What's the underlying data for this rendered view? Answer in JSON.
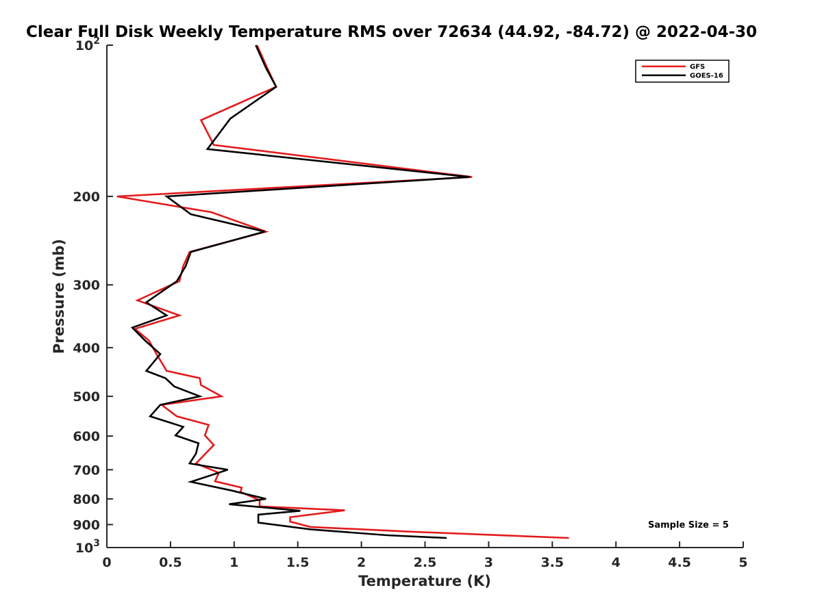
{
  "chart_data": {
    "type": "line",
    "title": "Clear Full Disk Weekly Temperature RMS over 72634 (44.92, -84.72) @ 2022-04-30",
    "xlabel": "Temperature (K)",
    "ylabel": "Pressure (mb)",
    "xlim": [
      0,
      5
    ],
    "ylim": [
      100,
      1000
    ],
    "y_scale": "log",
    "y_reversed": true,
    "grid": false,
    "legend_position": "top-right",
    "x_ticks": [
      0,
      0.5,
      1,
      1.5,
      2,
      2.5,
      3,
      3.5,
      4,
      4.5,
      5
    ],
    "x_tick_labels": [
      "0",
      "0.5",
      "1",
      "1.5",
      "2",
      "2.5",
      "3",
      "3.5",
      "4",
      "4.5",
      "5"
    ],
    "y_ticks": [
      100,
      200,
      300,
      400,
      500,
      600,
      700,
      800,
      900,
      1000
    ],
    "y_tick_labels": [
      "10^2",
      "200",
      "300",
      "400",
      "500",
      "600",
      "700",
      "800",
      "900",
      "10^3"
    ],
    "annotation": "Sample Size = 5",
    "series": [
      {
        "name": "GFS",
        "color": "#e41a1c",
        "points": [
          [
            1.18,
            100
          ],
          [
            1.26,
            111
          ],
          [
            1.33,
            121
          ],
          [
            0.74,
            141
          ],
          [
            0.84,
            158
          ],
          [
            2.87,
            183
          ],
          [
            0.08,
            200
          ],
          [
            0.82,
            215
          ],
          [
            1.25,
            235
          ],
          [
            0.65,
            258
          ],
          [
            0.6,
            275
          ],
          [
            0.57,
            295
          ],
          [
            0.24,
            322
          ],
          [
            0.57,
            345
          ],
          [
            0.22,
            367
          ],
          [
            0.33,
            387
          ],
          [
            0.39,
            412
          ],
          [
            0.47,
            445
          ],
          [
            0.73,
            460
          ],
          [
            0.74,
            475
          ],
          [
            0.9,
            500
          ],
          [
            0.43,
            520
          ],
          [
            0.55,
            548
          ],
          [
            0.8,
            570
          ],
          [
            0.77,
            598
          ],
          [
            0.84,
            625
          ],
          [
            0.77,
            652
          ],
          [
            0.7,
            680
          ],
          [
            0.88,
            710
          ],
          [
            0.85,
            738
          ],
          [
            1.06,
            760
          ],
          [
            1.05,
            775
          ],
          [
            1.2,
            805
          ],
          [
            1.2,
            828
          ],
          [
            1.87,
            843
          ],
          [
            1.44,
            870
          ],
          [
            1.44,
            888
          ],
          [
            1.6,
            910
          ],
          [
            2.4,
            930
          ],
          [
            3.63,
            957
          ]
        ]
      },
      {
        "name": "GOES-16",
        "color": "#000000",
        "points": [
          [
            1.17,
            100
          ],
          [
            1.25,
            111
          ],
          [
            1.33,
            121
          ],
          [
            0.97,
            140
          ],
          [
            0.79,
            161
          ],
          [
            2.85,
            183
          ],
          [
            0.47,
            200
          ],
          [
            0.66,
            217
          ],
          [
            1.24,
            235
          ],
          [
            0.66,
            258
          ],
          [
            0.62,
            275
          ],
          [
            0.55,
            295
          ],
          [
            0.31,
            325
          ],
          [
            0.47,
            345
          ],
          [
            0.2,
            365
          ],
          [
            0.3,
            387
          ],
          [
            0.42,
            412
          ],
          [
            0.31,
            445
          ],
          [
            0.46,
            460
          ],
          [
            0.53,
            478
          ],
          [
            0.73,
            500
          ],
          [
            0.42,
            520
          ],
          [
            0.34,
            548
          ],
          [
            0.6,
            575
          ],
          [
            0.54,
            598
          ],
          [
            0.72,
            620
          ],
          [
            0.7,
            650
          ],
          [
            0.65,
            680
          ],
          [
            0.95,
            700
          ],
          [
            0.66,
            740
          ],
          [
            0.98,
            770
          ],
          [
            1.25,
            800
          ],
          [
            0.96,
            820
          ],
          [
            1.52,
            845
          ],
          [
            1.19,
            860
          ],
          [
            1.19,
            892
          ],
          [
            1.6,
            920
          ],
          [
            2.2,
            945
          ],
          [
            2.67,
            957
          ]
        ]
      }
    ]
  }
}
